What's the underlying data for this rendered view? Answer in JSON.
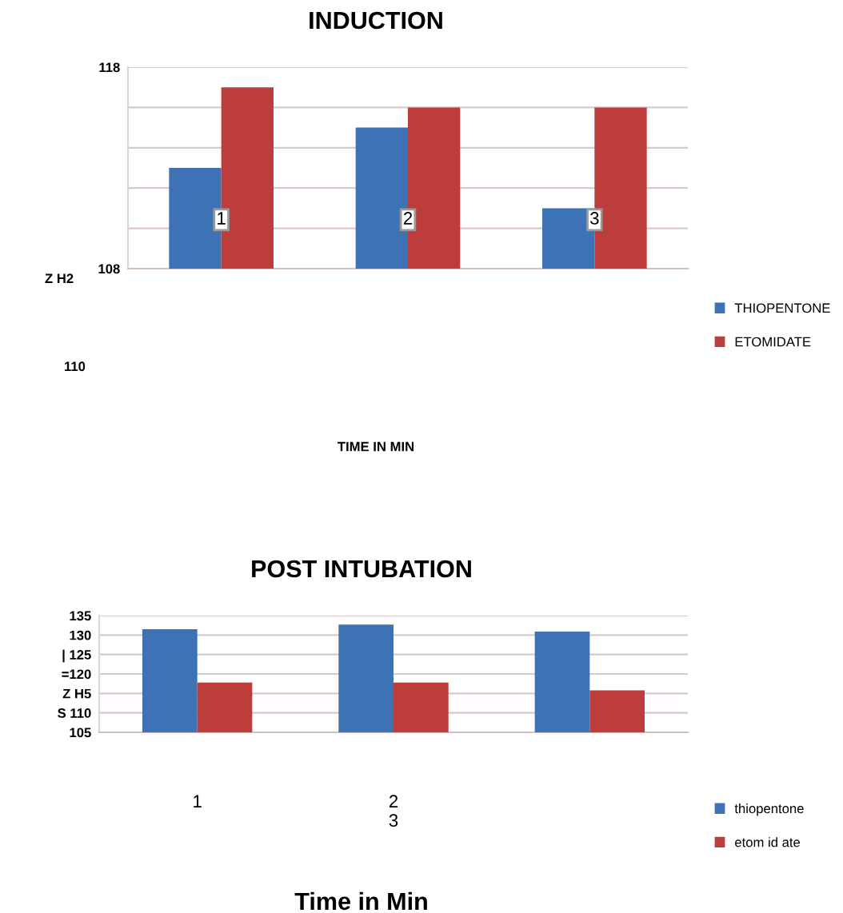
{
  "chart_data": [
    {
      "type": "bar",
      "title": "INDUCTION",
      "xlabel": "TIME IN MIN",
      "categories": [
        "1",
        "2",
        "3"
      ],
      "series": [
        {
          "name": "THIOPENTONE",
          "color": "#3d72b5",
          "values": [
            113,
            115,
            111
          ]
        },
        {
          "name": "ETOMIDATE",
          "color": "#bc3d3b",
          "values": [
            117,
            116,
            116
          ]
        }
      ],
      "ylim": [
        108,
        118
      ],
      "yticks": [
        108,
        {
          "value": 110,
          "label": null
        },
        {
          "value": 112,
          "label": null
        },
        {
          "value": 114,
          "label": null
        },
        {
          "value": 116,
          "label": null
        },
        118
      ],
      "grid": "y",
      "legend": "right",
      "annotations": [
        "Z H2",
        "110"
      ]
    },
    {
      "type": "bar",
      "title": "POST INTUBATION",
      "xlabel": "Time in Min",
      "categories": [
        "1",
        "2\n3",
        null
      ],
      "series": [
        {
          "name": "thiopentone",
          "color": "#3d72b5",
          "values": [
            131.5,
            132.7,
            130.9
          ]
        },
        {
          "name": "etom id ate",
          "color": "#bc3d3b",
          "values": [
            117.8,
            117.8,
            115.8
          ]
        }
      ],
      "ylim": [
        105,
        135
      ],
      "yticks": [
        105,
        {
          "value": 110,
          "label": "S 110"
        },
        {
          "value": 115,
          "label": "Z H5"
        },
        {
          "value": 120,
          "label": "=120"
        },
        {
          "value": 125,
          "label": "| 125"
        },
        130,
        135
      ],
      "grid": "y",
      "legend": "right"
    }
  ]
}
